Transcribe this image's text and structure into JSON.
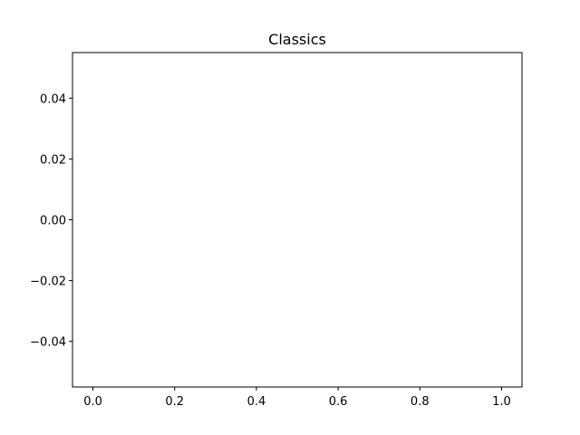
{
  "chart_data": {
    "type": "line",
    "title": "Classics",
    "xlabel": "",
    "ylabel": "",
    "series": [],
    "xlim": [
      -0.05,
      1.05
    ],
    "ylim": [
      -0.055,
      0.055
    ],
    "xticks": [
      0.0,
      0.2,
      0.4,
      0.6,
      0.8,
      1.0
    ],
    "xtick_labels": [
      "0.0",
      "0.2",
      "0.4",
      "0.6",
      "0.8",
      "1.0"
    ],
    "yticks": [
      0.04,
      0.02,
      0.0,
      -0.02,
      -0.04
    ],
    "ytick_labels": [
      "0.04",
      "0.02",
      "0.00",
      "−0.02",
      "−0.04"
    ],
    "grid": false,
    "legend": "none"
  }
}
